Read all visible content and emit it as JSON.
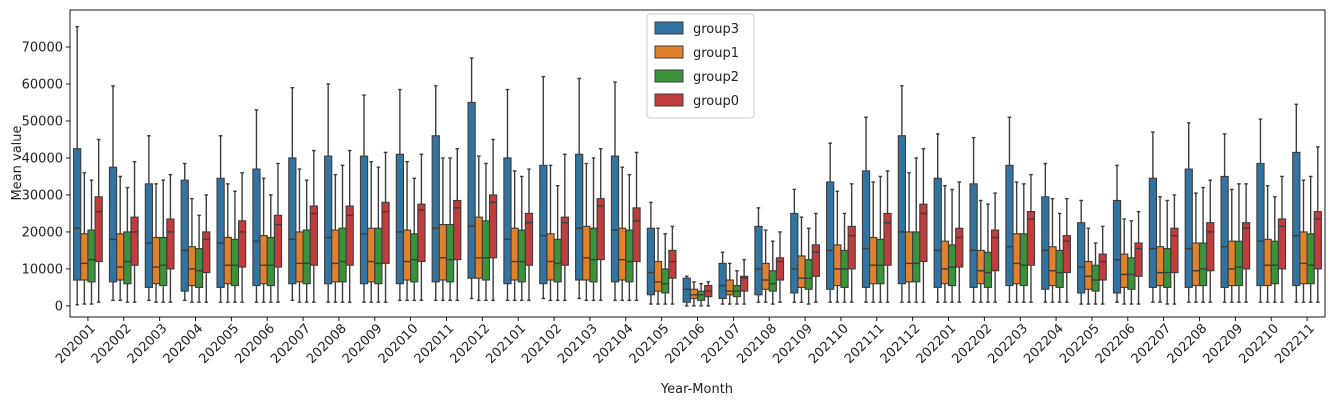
{
  "chart_data": {
    "type": "boxplot",
    "xlabel": "Year-Month",
    "ylabel": "Mean value",
    "ylim": [
      -3000,
      80000
    ],
    "yticks": [
      0,
      10000,
      20000,
      30000,
      40000,
      50000,
      60000,
      70000
    ],
    "ytick_labels": [
      "0",
      "10000",
      "20000",
      "30000",
      "40000",
      "50000",
      "60000",
      "70000"
    ],
    "legend_position": "top-center",
    "categories": [
      "202001",
      "202002",
      "202003",
      "202004",
      "202005",
      "202006",
      "202007",
      "202008",
      "202009",
      "202010",
      "202011",
      "202012",
      "202101",
      "202102",
      "202103",
      "202104",
      "202105",
      "202106",
      "202107",
      "202108",
      "202109",
      "202110",
      "202111",
      "202112",
      "202201",
      "202202",
      "202203",
      "202204",
      "202205",
      "202206",
      "202207",
      "202208",
      "202209",
      "202210",
      "202211"
    ],
    "series": [
      {
        "name": "group3",
        "color": "#3274a1",
        "boxes": [
          [
            300,
            7000,
            21000,
            42500,
            75500
          ],
          [
            1500,
            6500,
            18000,
            37500,
            59500
          ],
          [
            1500,
            5000,
            17000,
            33000,
            46000
          ],
          [
            1500,
            4000,
            15000,
            34000,
            38500
          ],
          [
            1000,
            5000,
            17000,
            34500,
            46000
          ],
          [
            1000,
            5500,
            17500,
            37000,
            53000
          ],
          [
            1500,
            6000,
            18000,
            40000,
            59000
          ],
          [
            1000,
            6000,
            18500,
            40500,
            60000
          ],
          [
            1000,
            6000,
            19500,
            40500,
            57000
          ],
          [
            1500,
            6000,
            20000,
            41000,
            58500
          ],
          [
            1500,
            6500,
            21000,
            46000,
            59500
          ],
          [
            2000,
            7500,
            21500,
            55000,
            67000
          ],
          [
            1500,
            6000,
            18000,
            40000,
            58500
          ],
          [
            2000,
            6000,
            19000,
            38000,
            62000
          ],
          [
            2000,
            7000,
            21000,
            41000,
            61500
          ],
          [
            1500,
            6500,
            20500,
            40500,
            60500
          ],
          [
            500,
            3000,
            9000,
            21000,
            28000
          ],
          [
            0,
            1000,
            4500,
            7500,
            8000
          ],
          [
            500,
            2000,
            5500,
            11500,
            14500
          ],
          [
            1000,
            3000,
            10000,
            21500,
            26500
          ],
          [
            1000,
            3500,
            10000,
            25000,
            31500
          ],
          [
            1000,
            4500,
            15000,
            33500,
            44000
          ],
          [
            1000,
            5000,
            15500,
            36500,
            51000
          ],
          [
            1000,
            6000,
            20000,
            46000,
            59500
          ],
          [
            1000,
            5000,
            15000,
            34500,
            46500
          ],
          [
            1000,
            5000,
            15000,
            33000,
            45500
          ],
          [
            1000,
            5500,
            16000,
            38000,
            51000
          ],
          [
            1000,
            4500,
            15000,
            29500,
            38500
          ],
          [
            500,
            3500,
            10500,
            22500,
            28500
          ],
          [
            1000,
            3500,
            12500,
            28500,
            38000
          ],
          [
            1000,
            5000,
            15500,
            34500,
            47000
          ],
          [
            1000,
            5000,
            15500,
            37000,
            49500
          ],
          [
            1000,
            5000,
            16000,
            35000,
            46500
          ],
          [
            1000,
            5500,
            17500,
            38500,
            50500
          ],
          [
            1000,
            5500,
            19000,
            41500,
            54500
          ]
        ]
      },
      {
        "name": "group1",
        "color": "#e1812c",
        "boxes": [
          [
            500,
            7000,
            11500,
            19500,
            36000
          ],
          [
            1500,
            7000,
            10500,
            19500,
            35000
          ],
          [
            1000,
            6000,
            10500,
            18500,
            33000
          ],
          [
            1000,
            5500,
            10000,
            16000,
            29000
          ],
          [
            1000,
            6000,
            11000,
            18500,
            33000
          ],
          [
            1000,
            6000,
            11000,
            19000,
            34500
          ],
          [
            1000,
            6500,
            11500,
            20000,
            37000
          ],
          [
            1000,
            6500,
            11500,
            20500,
            35500
          ],
          [
            1000,
            6500,
            12000,
            21000,
            39000
          ],
          [
            1500,
            7000,
            12000,
            20500,
            39000
          ],
          [
            1500,
            7000,
            13000,
            22000,
            40000
          ],
          [
            1500,
            7500,
            13000,
            24000,
            40500
          ],
          [
            1500,
            7000,
            12000,
            21000,
            36500
          ],
          [
            1500,
            7000,
            12000,
            19500,
            38000
          ],
          [
            1500,
            7000,
            13000,
            21500,
            38500
          ],
          [
            1500,
            7000,
            12500,
            21000,
            37500
          ],
          [
            500,
            4000,
            6500,
            12000,
            21000
          ],
          [
            0,
            2000,
            3000,
            4500,
            6500
          ],
          [
            500,
            3000,
            4000,
            7000,
            11500
          ],
          [
            1000,
            4500,
            7000,
            11500,
            20500
          ],
          [
            1000,
            5000,
            7500,
            13500,
            24000
          ],
          [
            1000,
            5500,
            10000,
            16500,
            31000
          ],
          [
            1000,
            6000,
            11000,
            18500,
            33500
          ],
          [
            1000,
            6500,
            11500,
            20000,
            36000
          ],
          [
            1000,
            6000,
            10000,
            17500,
            32500
          ],
          [
            1000,
            6000,
            9500,
            15000,
            28500
          ],
          [
            1000,
            6000,
            11500,
            19500,
            33500
          ],
          [
            1000,
            5500,
            9500,
            16000,
            29000
          ],
          [
            500,
            4500,
            8000,
            12000,
            21000
          ],
          [
            500,
            5000,
            8500,
            14000,
            23500
          ],
          [
            1000,
            5500,
            9000,
            16000,
            29500
          ],
          [
            1000,
            5500,
            9500,
            17000,
            30500
          ],
          [
            1000,
            5500,
            10000,
            17500,
            31500
          ],
          [
            1000,
            5500,
            11000,
            18000,
            32500
          ],
          [
            1000,
            6000,
            11500,
            20000,
            34000
          ]
        ]
      },
      {
        "name": "group2",
        "color": "#3a923a",
        "boxes": [
          [
            500,
            6500,
            12500,
            20500,
            34000
          ],
          [
            1000,
            6000,
            12000,
            20000,
            32000
          ],
          [
            1000,
            5500,
            11000,
            18500,
            34000
          ],
          [
            1000,
            5000,
            9500,
            15500,
            24500
          ],
          [
            1000,
            5500,
            11000,
            18000,
            31000
          ],
          [
            1000,
            5500,
            11000,
            18500,
            30000
          ],
          [
            1000,
            6000,
            11500,
            20500,
            34000
          ],
          [
            1000,
            6500,
            12000,
            21000,
            38000
          ],
          [
            1000,
            6000,
            11500,
            21000,
            37500
          ],
          [
            1500,
            6500,
            12500,
            19500,
            34500
          ],
          [
            1500,
            6500,
            12500,
            22000,
            40000
          ],
          [
            1500,
            7000,
            13000,
            23000,
            38500
          ],
          [
            1500,
            6500,
            12000,
            20500,
            35000
          ],
          [
            1500,
            6500,
            11500,
            18000,
            32500
          ],
          [
            1500,
            6500,
            12500,
            21000,
            40000
          ],
          [
            1500,
            6500,
            12000,
            20500,
            35500
          ],
          [
            500,
            3500,
            6000,
            10000,
            19500
          ],
          [
            0,
            1500,
            3000,
            4000,
            6000
          ],
          [
            500,
            2500,
            4000,
            5500,
            9500
          ],
          [
            500,
            4000,
            6000,
            9500,
            17500
          ],
          [
            500,
            4500,
            7500,
            12500,
            21000
          ],
          [
            1000,
            5000,
            10000,
            15000,
            25000
          ],
          [
            1000,
            6000,
            11000,
            18000,
            35000
          ],
          [
            1000,
            6500,
            11500,
            20000,
            40000
          ],
          [
            1000,
            5500,
            10500,
            16500,
            31500
          ],
          [
            1000,
            5000,
            9000,
            14500,
            27500
          ],
          [
            1000,
            5500,
            11000,
            19500,
            33000
          ],
          [
            1000,
            5000,
            9000,
            15000,
            25000
          ],
          [
            500,
            4000,
            7000,
            11000,
            17000
          ],
          [
            500,
            4500,
            8500,
            13000,
            23000
          ],
          [
            500,
            5000,
            9000,
            15500,
            28500
          ],
          [
            1000,
            5500,
            10000,
            17000,
            32000
          ],
          [
            1000,
            5500,
            10500,
            17500,
            33000
          ],
          [
            1000,
            6000,
            11000,
            17500,
            29500
          ],
          [
            1000,
            6000,
            11000,
            19500,
            35000
          ]
        ]
      },
      {
        "name": "group0",
        "color": "#c03d3e",
        "boxes": [
          [
            1000,
            12000,
            25500,
            29500,
            45000
          ],
          [
            1000,
            11000,
            20000,
            24000,
            39000
          ],
          [
            1000,
            10000,
            20000,
            23500,
            35500
          ],
          [
            1000,
            9000,
            18000,
            20000,
            30000
          ],
          [
            1000,
            10500,
            20000,
            23000,
            36000
          ],
          [
            1000,
            10500,
            22000,
            24500,
            38500
          ],
          [
            1000,
            11000,
            25000,
            27000,
            42000
          ],
          [
            1000,
            11000,
            24500,
            27000,
            42000
          ],
          [
            1000,
            11500,
            25500,
            28000,
            41500
          ],
          [
            1500,
            12000,
            26000,
            27500,
            41000
          ],
          [
            1500,
            12500,
            26500,
            28500,
            42500
          ],
          [
            1500,
            13000,
            28000,
            30000,
            45000
          ],
          [
            1500,
            11000,
            22500,
            25000,
            37000
          ],
          [
            1500,
            11000,
            22500,
            24000,
            41000
          ],
          [
            1500,
            12500,
            27000,
            29000,
            42500
          ],
          [
            1500,
            12000,
            23000,
            26500,
            41500
          ],
          [
            500,
            7500,
            12000,
            15000,
            21500
          ],
          [
            0,
            2500,
            4000,
            5500,
            6500
          ],
          [
            500,
            4000,
            7500,
            8000,
            12500
          ],
          [
            1000,
            7000,
            12000,
            13000,
            20000
          ],
          [
            1000,
            8000,
            14500,
            16500,
            25000
          ],
          [
            1000,
            10000,
            19000,
            21500,
            33000
          ],
          [
            1000,
            11000,
            22500,
            25000,
            36500
          ],
          [
            1000,
            12000,
            25000,
            27500,
            42500
          ],
          [
            1000,
            10500,
            18500,
            21000,
            33500
          ],
          [
            1000,
            9500,
            18500,
            20500,
            30500
          ],
          [
            1000,
            11000,
            23500,
            25500,
            35500
          ],
          [
            1000,
            9000,
            17500,
            19000,
            29000
          ],
          [
            500,
            7000,
            12000,
            14000,
            21500
          ],
          [
            500,
            8000,
            15500,
            17000,
            25500
          ],
          [
            500,
            9000,
            19000,
            21000,
            30000
          ],
          [
            1000,
            9500,
            20000,
            22500,
            34000
          ],
          [
            1000,
            10000,
            21000,
            22500,
            33000
          ],
          [
            1000,
            10000,
            21500,
            23500,
            35000
          ],
          [
            1000,
            10000,
            23500,
            25500,
            43000
          ]
        ]
      }
    ]
  }
}
